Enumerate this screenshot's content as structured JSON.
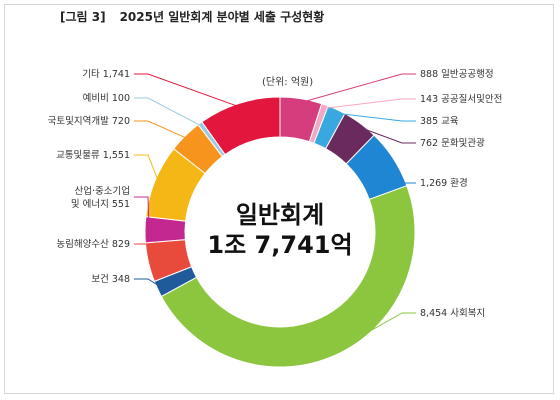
{
  "figure": {
    "label": "[그림 3]",
    "title": "2025년 일반회계 분야별 세출 구성현황",
    "unit": "(단위: 억원)",
    "center_line1": "일반회계",
    "center_line2": "1조 7,741억"
  },
  "chart_data": {
    "type": "pie",
    "subtype": "donut",
    "title": "2025년 일반회계 분야별 세출 구성현황",
    "unit": "억원",
    "total": 17741,
    "slices": [
      {
        "name": "일반공공행정",
        "value": 888,
        "label": "888 일반공공행정",
        "color": "#d63d7c"
      },
      {
        "name": "공공질서및안전",
        "value": 143,
        "label": "143 공공질서및안전",
        "color": "#f2a8c4"
      },
      {
        "name": "교육",
        "value": 385,
        "label": "385 교육",
        "color": "#39a8e0"
      },
      {
        "name": "문화및관광",
        "value": 762,
        "label": "762 문화및관광",
        "color": "#6b2a5e"
      },
      {
        "name": "환경",
        "value": 1269,
        "label": "1,269 환경",
        "color": "#1f86d3"
      },
      {
        "name": "사회복지",
        "value": 8454,
        "label": "8,454 사회복지",
        "color": "#8cc63f"
      },
      {
        "name": "보건",
        "value": 348,
        "label": "보건 348",
        "color": "#1f5a9a"
      },
      {
        "name": "농림해양수산",
        "value": 829,
        "label": "농림해양수산 829",
        "color": "#e84b3c"
      },
      {
        "name": "산업·중소기업및에너지",
        "value": 551,
        "label": "산업·중소기업\n및 에너지 551",
        "color": "#c2288f"
      },
      {
        "name": "교통및물류",
        "value": 1551,
        "label": "교통및물류 1,551",
        "color": "#f5b716"
      },
      {
        "name": "국토및지역개발",
        "value": 720,
        "label": "국토및지역개발 720",
        "color": "#f7941d"
      },
      {
        "name": "예비비",
        "value": 100,
        "label": "예비비 100",
        "color": "#9ecae1"
      },
      {
        "name": "기타",
        "value": 1741,
        "label": "기타 1,741",
        "color": "#e3163e"
      }
    ],
    "legend": "none"
  }
}
